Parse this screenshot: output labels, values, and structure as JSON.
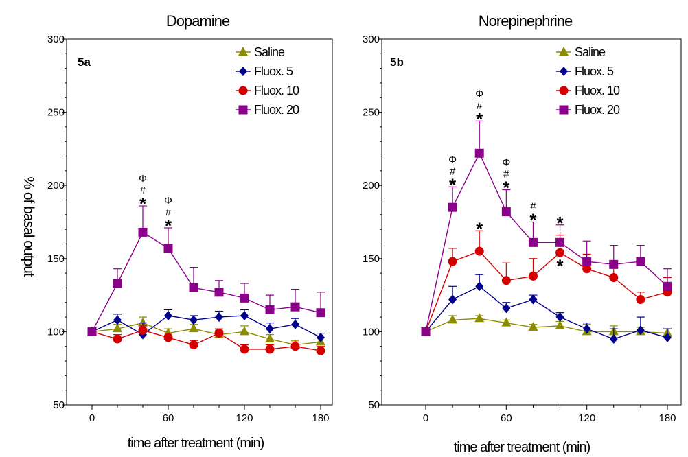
{
  "figure": {
    "ylabel": "% of basal output",
    "legend": [
      "Saline",
      "Fluox. 5",
      "Fluox. 10",
      "Fluox. 20"
    ]
  },
  "chart_data": [
    {
      "type": "line",
      "title": "Dopamine",
      "panel_label": "5a",
      "xlabel": "time after treatment (min)",
      "ylabel": "% of basal output",
      "xlim": [
        -20,
        190
      ],
      "ylim": [
        50,
        300
      ],
      "xticks": [
        0,
        60,
        120,
        180
      ],
      "yticks": [
        50,
        100,
        150,
        200,
        250,
        300
      ],
      "legend_position": "top-right",
      "x": [
        0,
        20,
        40,
        60,
        80,
        100,
        120,
        140,
        160,
        180
      ],
      "series": [
        {
          "name": "Saline",
          "color": "#8c8c00",
          "marker": "triangle",
          "values": [
            100,
            102,
            106,
            99,
            102,
            98,
            100,
            95,
            91,
            93
          ],
          "errors": [
            0,
            3,
            4,
            3,
            3,
            3,
            4,
            3,
            3,
            3
          ]
        },
        {
          "name": "Fluox. 5",
          "color": "#00008b",
          "marker": "diamond",
          "values": [
            100,
            108,
            98,
            111,
            108,
            110,
            111,
            102,
            105,
            96
          ],
          "errors": [
            0,
            4,
            8,
            4,
            3,
            4,
            4,
            4,
            4,
            3
          ]
        },
        {
          "name": "Fluox. 10",
          "color": "#d40000",
          "marker": "circle",
          "values": [
            100,
            95,
            101,
            96,
            91,
            99,
            88,
            88,
            90,
            87
          ],
          "errors": [
            0,
            3,
            3,
            3,
            3,
            3,
            3,
            3,
            3,
            3
          ]
        },
        {
          "name": "Fluox. 20",
          "color": "#8b008b",
          "marker": "square",
          "values": [
            100,
            133,
            168,
            157,
            130,
            127,
            123,
            115,
            117,
            113
          ],
          "errors": [
            0,
            10,
            18,
            14,
            14,
            8,
            10,
            10,
            12,
            14
          ]
        }
      ],
      "annotations": [
        {
          "x": 40,
          "y": 168,
          "marks": [
            "Φ",
            "#",
            "*"
          ]
        },
        {
          "x": 60,
          "y": 157,
          "marks": [
            "Φ",
            "#",
            "*"
          ]
        }
      ]
    },
    {
      "type": "line",
      "title": "Norepinephrine",
      "panel_label": "5b",
      "xlabel": "time after treatment (min)",
      "ylabel": "% of basal output",
      "xlim": [
        -20,
        190
      ],
      "ylim": [
        50,
        300
      ],
      "xticks": [
        0,
        60,
        120,
        180
      ],
      "yticks": [
        50,
        100,
        150,
        200,
        250,
        300
      ],
      "legend_position": "top-right",
      "x": [
        0,
        20,
        40,
        60,
        80,
        100,
        120,
        140,
        160,
        180
      ],
      "series": [
        {
          "name": "Saline",
          "color": "#8c8c00",
          "marker": "triangle",
          "values": [
            100,
            108,
            109,
            106,
            103,
            104,
            100,
            100,
            100,
            99
          ],
          "errors": [
            0,
            3,
            2,
            2,
            2,
            3,
            5,
            4,
            3,
            3
          ]
        },
        {
          "name": "Fluox. 5",
          "color": "#00008b",
          "marker": "diamond",
          "values": [
            100,
            122,
            131,
            116,
            122,
            110,
            102,
            95,
            101,
            96
          ],
          "errors": [
            0,
            9,
            8,
            4,
            3,
            3,
            4,
            7,
            9,
            6
          ]
        },
        {
          "name": "Fluox. 10",
          "color": "#d40000",
          "marker": "circle",
          "values": [
            100,
            148,
            155,
            135,
            138,
            154,
            143,
            137,
            122,
            127
          ],
          "errors": [
            0,
            9,
            14,
            12,
            12,
            12,
            10,
            10,
            5,
            10
          ]
        },
        {
          "name": "Fluox. 20",
          "color": "#8b008b",
          "marker": "square",
          "values": [
            100,
            185,
            222,
            182,
            161,
            161,
            148,
            146,
            148,
            131
          ],
          "errors": [
            0,
            14,
            22,
            15,
            14,
            12,
            14,
            13,
            11,
            12
          ]
        }
      ],
      "annotations": [
        {
          "x": 20,
          "y": 185,
          "marks": [
            "Φ",
            "#",
            "*"
          ]
        },
        {
          "x": 40,
          "y": 222,
          "marks": [
            "Φ",
            "#",
            "*"
          ]
        },
        {
          "x": 60,
          "y": 182,
          "marks": [
            "Φ",
            "#",
            "*"
          ]
        },
        {
          "x": 80,
          "y": 161,
          "marks": [
            "#",
            "*"
          ]
        },
        {
          "x": 40,
          "y": 155,
          "marks": [
            "*"
          ]
        },
        {
          "x": 100,
          "y": 161,
          "marks": [
            "*"
          ]
        },
        {
          "x": 100,
          "y": 154,
          "marks": [
            "*"
          ],
          "below": true
        }
      ]
    }
  ]
}
